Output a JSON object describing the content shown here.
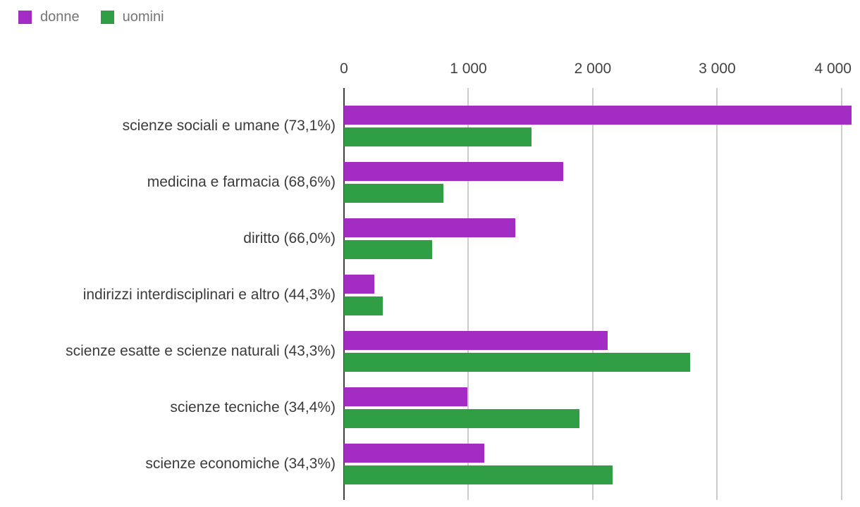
{
  "page": {
    "background": "#ffffff"
  },
  "legend": {
    "items": [
      {
        "label": "donne",
        "color": "#a32cc4"
      },
      {
        "label": "uomini",
        "color": "#2f9e44"
      }
    ]
  },
  "chart_data": {
    "type": "bar",
    "orientation": "horizontal",
    "title": "",
    "xlabel": "",
    "ylabel": "",
    "categories": [
      "scienze sociali e umane (73,1%)",
      "medicina e farmacia (68,6%)",
      "diritto (66,0%)",
      "indirizzi interdisciplinari e altro (44,3%)",
      "scienze esatte e scienze naturali (43,3%)",
      "scienze tecniche (34,4%)",
      "scienze economiche (34,3%)"
    ],
    "series": [
      {
        "name": "donne",
        "color": "#a32cc4",
        "values": [
          4080,
          1760,
          1375,
          245,
          2120,
          990,
          1130
        ]
      },
      {
        "name": "uomini",
        "color": "#2f9e44",
        "values": [
          1505,
          800,
          710,
          310,
          2780,
          1890,
          2160
        ]
      }
    ],
    "xlim": [
      0,
      4080
    ],
    "x_ticks": [
      {
        "value": 0,
        "label": "0"
      },
      {
        "value": 1000,
        "label": "1 000"
      },
      {
        "value": 2000,
        "label": "2 000"
      },
      {
        "value": 3000,
        "label": "3 000"
      },
      {
        "value": 4000,
        "label": "4 000"
      }
    ],
    "grid": true,
    "legend_position": "top-left"
  },
  "colors": {
    "grid": "#cccccc",
    "axis_baseline": "#424242",
    "tick_text": "#424242",
    "category_text": "#3b3b3b",
    "legend_text": "#757575"
  }
}
